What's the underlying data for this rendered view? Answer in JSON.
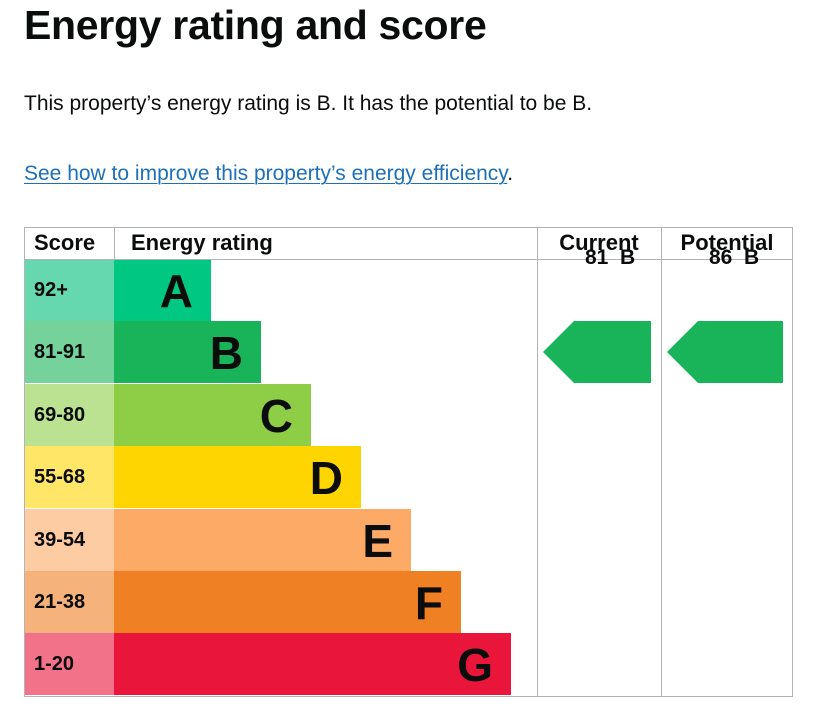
{
  "page": {
    "title": "Energy rating and score",
    "summary": "This property’s energy rating is B. It has the potential to be B.",
    "improve_link": "See how to improve this property’s energy efficiency",
    "improve_suffix": "."
  },
  "chart_data": {
    "type": "table",
    "headers": {
      "score": "Score",
      "rating": "Energy rating",
      "current": "Current",
      "potential": "Potential"
    },
    "bands": [
      {
        "range": "92+",
        "letter": "A",
        "band_color": "#00c781",
        "score_color": "#66d8b0"
      },
      {
        "range": "81-91",
        "letter": "B",
        "band_color": "#19b459",
        "score_color": "#75d29a"
      },
      {
        "range": "69-80",
        "letter": "C",
        "band_color": "#8dce46",
        "score_color": "#bbe290"
      },
      {
        "range": "55-68",
        "letter": "D",
        "band_color": "#ffd500",
        "score_color": "#ffe666"
      },
      {
        "range": "39-54",
        "letter": "E",
        "band_color": "#fcaa65",
        "score_color": "#fdcca2"
      },
      {
        "range": "21-38",
        "letter": "F",
        "band_color": "#ef8023",
        "score_color": "#f5b37b"
      },
      {
        "range": "1-20",
        "letter": "G",
        "band_color": "#e9153b",
        "score_color": "#f27389"
      }
    ],
    "current": {
      "score": 81,
      "letter": "B",
      "label": "81  B",
      "color": "#19b459"
    },
    "potential": {
      "score": 86,
      "letter": "B",
      "label": "86  B",
      "color": "#19b459"
    }
  }
}
